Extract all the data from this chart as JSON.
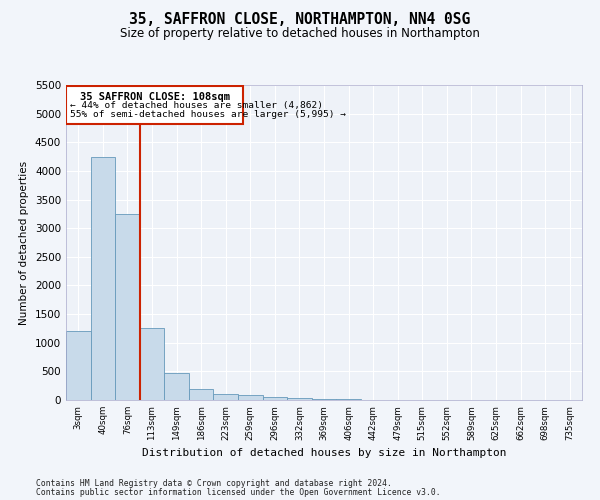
{
  "title": "35, SAFFRON CLOSE, NORTHAMPTON, NN4 0SG",
  "subtitle": "Size of property relative to detached houses in Northampton",
  "xlabel": "Distribution of detached houses by size in Northampton",
  "ylabel": "Number of detached properties",
  "footer_line1": "Contains HM Land Registry data © Crown copyright and database right 2024.",
  "footer_line2": "Contains public sector information licensed under the Open Government Licence v3.0.",
  "annotation_line1": "35 SAFFRON CLOSE: 108sqm",
  "annotation_line2": "← 44% of detached houses are smaller (4,862)",
  "annotation_line3": "55% of semi-detached houses are larger (5,995) →",
  "bar_color": "#c8daea",
  "bar_edge_color": "#6699bb",
  "vline_color": "#cc2200",
  "annotation_box_edgecolor": "#cc2200",
  "ylim_max": 5500,
  "ytick_step": 500,
  "bins": [
    "3sqm",
    "40sqm",
    "76sqm",
    "113sqm",
    "149sqm",
    "186sqm",
    "223sqm",
    "259sqm",
    "296sqm",
    "332sqm",
    "369sqm",
    "406sqm",
    "442sqm",
    "479sqm",
    "515sqm",
    "552sqm",
    "589sqm",
    "625sqm",
    "662sqm",
    "698sqm",
    "735sqm"
  ],
  "values": [
    1200,
    4250,
    3250,
    1250,
    475,
    190,
    105,
    80,
    55,
    35,
    20,
    12,
    5,
    3,
    2,
    1,
    1,
    0,
    0,
    0,
    0
  ],
  "bg_color": "#eef2f8",
  "grid_color": "#ffffff",
  "property_bin_idx": 2,
  "fig_bg": "#f2f5fa"
}
